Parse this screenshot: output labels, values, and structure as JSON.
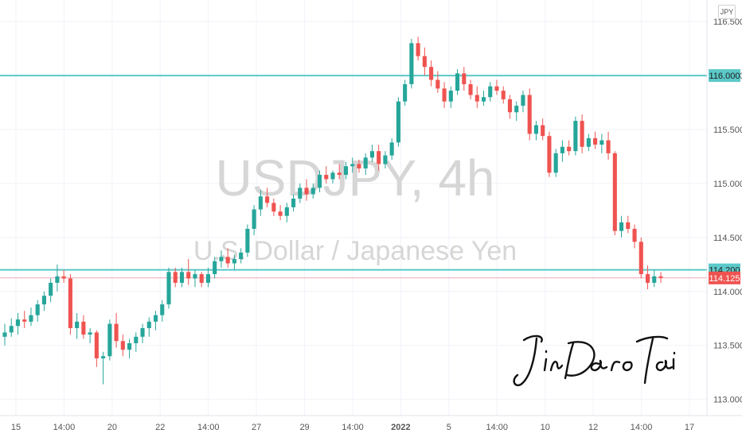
{
  "currency_button": "JPY",
  "watermark": {
    "symbol": "USDJPY, 4h",
    "description": "U.S. Dollar / Japanese Yen"
  },
  "signature_text": "Jin Dao Tai",
  "colors": {
    "up": "#26a69a",
    "down": "#ef5350",
    "level_line": "#5cc8c8",
    "grid": "#f0f3fa",
    "axis_text": "#555555"
  },
  "chart_data": {
    "type": "candlestick",
    "symbol": "USDJPY",
    "timeframe": "4h",
    "ylim": [
      112.85,
      116.7
    ],
    "y_ticks": [
      "116.500",
      "116.000",
      "115.500",
      "115.000",
      "114.500",
      "114.000",
      "113.500",
      "113.000"
    ],
    "y_tick_values": [
      116.5,
      116.0,
      115.5,
      115.0,
      114.5,
      114.0,
      113.5,
      113.0
    ],
    "x_tick_labels": [
      "15",
      "14:00",
      "20",
      "22",
      "14:00",
      "27",
      "29",
      "14:00",
      "2022",
      "5",
      "14:00",
      "10",
      "12",
      "14:00",
      "17"
    ],
    "horizontal_levels": [
      {
        "value": 116.0,
        "label": "116.000"
      },
      {
        "value": 114.2,
        "label": "114.200"
      }
    ],
    "current_price": {
      "value": 114.125,
      "label": "114.125"
    },
    "candles_ohlc": [
      [
        113.58,
        113.7,
        113.5,
        113.62
      ],
      [
        113.62,
        113.75,
        113.58,
        113.68
      ],
      [
        113.68,
        113.8,
        113.6,
        113.74
      ],
      [
        113.74,
        113.82,
        113.66,
        113.72
      ],
      [
        113.72,
        113.85,
        113.68,
        113.78
      ],
      [
        113.78,
        113.92,
        113.72,
        113.88
      ],
      [
        113.88,
        114.0,
        113.82,
        113.96
      ],
      [
        113.96,
        114.12,
        113.9,
        114.08
      ],
      [
        114.08,
        114.25,
        114.0,
        114.14
      ],
      [
        114.14,
        114.2,
        114.08,
        114.12
      ],
      [
        114.12,
        114.16,
        113.6,
        113.66
      ],
      [
        113.66,
        113.8,
        113.56,
        113.72
      ],
      [
        113.72,
        113.78,
        113.56,
        113.6
      ],
      [
        113.6,
        113.66,
        113.52,
        113.62
      ],
      [
        113.62,
        113.64,
        113.3,
        113.38
      ],
      [
        113.38,
        113.44,
        113.14,
        113.4
      ],
      [
        113.4,
        113.74,
        113.36,
        113.7
      ],
      [
        113.7,
        113.8,
        113.48,
        113.54
      ],
      [
        113.54,
        113.6,
        113.4,
        113.46
      ],
      [
        113.46,
        113.56,
        113.38,
        113.52
      ],
      [
        113.52,
        113.62,
        113.44,
        113.58
      ],
      [
        113.58,
        113.7,
        113.52,
        113.66
      ],
      [
        113.66,
        113.76,
        113.58,
        113.72
      ],
      [
        113.72,
        113.82,
        113.64,
        113.78
      ],
      [
        113.78,
        113.92,
        113.72,
        113.88
      ],
      [
        113.88,
        114.22,
        113.84,
        114.18
      ],
      [
        114.18,
        114.22,
        114.04,
        114.08
      ],
      [
        114.08,
        114.22,
        114.04,
        114.18
      ],
      [
        114.18,
        114.3,
        114.06,
        114.12
      ],
      [
        114.12,
        114.2,
        114.04,
        114.16
      ],
      [
        114.16,
        114.18,
        114.04,
        114.08
      ],
      [
        114.08,
        114.22,
        114.04,
        114.16
      ],
      [
        114.16,
        114.32,
        114.12,
        114.28
      ],
      [
        114.28,
        114.38,
        114.22,
        114.32
      ],
      [
        114.32,
        114.4,
        114.22,
        114.26
      ],
      [
        114.26,
        114.34,
        114.2,
        114.3
      ],
      [
        114.3,
        114.4,
        114.26,
        114.36
      ],
      [
        114.36,
        114.62,
        114.32,
        114.58
      ],
      [
        114.58,
        114.8,
        114.52,
        114.76
      ],
      [
        114.76,
        114.94,
        114.7,
        114.88
      ],
      [
        114.88,
        114.96,
        114.78,
        114.82
      ],
      [
        114.82,
        114.86,
        114.7,
        114.74
      ],
      [
        114.74,
        114.8,
        114.66,
        114.7
      ],
      [
        114.7,
        114.82,
        114.64,
        114.78
      ],
      [
        114.78,
        114.9,
        114.74,
        114.86
      ],
      [
        114.86,
        115.0,
        114.82,
        114.96
      ],
      [
        114.96,
        115.04,
        114.84,
        114.9
      ],
      [
        114.9,
        115.0,
        114.86,
        114.96
      ],
      [
        114.96,
        115.12,
        114.92,
        115.08
      ],
      [
        115.08,
        115.16,
        115.0,
        115.04
      ],
      [
        115.04,
        115.12,
        115.0,
        115.1
      ],
      [
        115.1,
        115.18,
        115.04,
        115.08
      ],
      [
        115.08,
        115.2,
        115.04,
        115.16
      ],
      [
        115.16,
        115.24,
        115.1,
        115.18
      ],
      [
        115.18,
        115.22,
        115.1,
        115.14
      ],
      [
        115.14,
        115.28,
        115.08,
        115.24
      ],
      [
        115.24,
        115.36,
        115.2,
        115.3
      ],
      [
        115.3,
        115.36,
        115.12,
        115.18
      ],
      [
        115.18,
        115.3,
        115.14,
        115.26
      ],
      [
        115.26,
        115.42,
        115.22,
        115.38
      ],
      [
        115.38,
        115.8,
        115.34,
        115.76
      ],
      [
        115.76,
        115.96,
        115.72,
        115.92
      ],
      [
        115.92,
        116.34,
        115.88,
        116.3
      ],
      [
        116.3,
        116.36,
        116.14,
        116.18
      ],
      [
        116.18,
        116.26,
        116.0,
        116.08
      ],
      [
        116.08,
        116.14,
        115.9,
        115.96
      ],
      [
        115.96,
        116.04,
        115.84,
        115.88
      ],
      [
        115.88,
        115.94,
        115.7,
        115.76
      ],
      [
        115.76,
        115.9,
        115.7,
        115.86
      ],
      [
        115.86,
        116.06,
        115.82,
        116.02
      ],
      [
        116.02,
        116.08,
        115.86,
        115.92
      ],
      [
        115.92,
        115.96,
        115.78,
        115.82
      ],
      [
        115.82,
        115.9,
        115.7,
        115.76
      ],
      [
        115.76,
        115.86,
        115.72,
        115.8
      ],
      [
        115.8,
        115.94,
        115.76,
        115.9
      ],
      [
        115.9,
        115.96,
        115.82,
        115.86
      ],
      [
        115.86,
        115.9,
        115.74,
        115.78
      ],
      [
        115.78,
        115.82,
        115.6,
        115.66
      ],
      [
        115.66,
        115.76,
        115.58,
        115.72
      ],
      [
        115.72,
        115.86,
        115.66,
        115.82
      ],
      [
        115.82,
        115.88,
        115.4,
        115.46
      ],
      [
        115.46,
        115.58,
        115.4,
        115.54
      ],
      [
        115.54,
        115.6,
        115.4,
        115.44
      ],
      [
        115.44,
        115.48,
        115.06,
        115.1
      ],
      [
        115.1,
        115.32,
        115.06,
        115.28
      ],
      [
        115.28,
        115.4,
        115.2,
        115.34
      ],
      [
        115.34,
        115.4,
        115.26,
        115.3
      ],
      [
        115.3,
        115.62,
        115.26,
        115.58
      ],
      [
        115.58,
        115.64,
        115.28,
        115.34
      ],
      [
        115.34,
        115.46,
        115.3,
        115.42
      ],
      [
        115.42,
        115.48,
        115.32,
        115.36
      ],
      [
        115.36,
        115.46,
        115.28,
        115.4
      ],
      [
        115.4,
        115.48,
        115.22,
        115.28
      ],
      [
        115.28,
        115.3,
        114.52,
        114.56
      ],
      [
        114.56,
        114.7,
        114.5,
        114.64
      ],
      [
        114.64,
        114.7,
        114.54,
        114.58
      ],
      [
        114.58,
        114.62,
        114.4,
        114.46
      ],
      [
        114.46,
        114.5,
        114.12,
        114.16
      ],
      [
        114.16,
        114.24,
        114.02,
        114.08
      ],
      [
        114.08,
        114.2,
        114.04,
        114.14
      ],
      [
        114.14,
        114.18,
        114.08,
        114.125
      ]
    ]
  }
}
